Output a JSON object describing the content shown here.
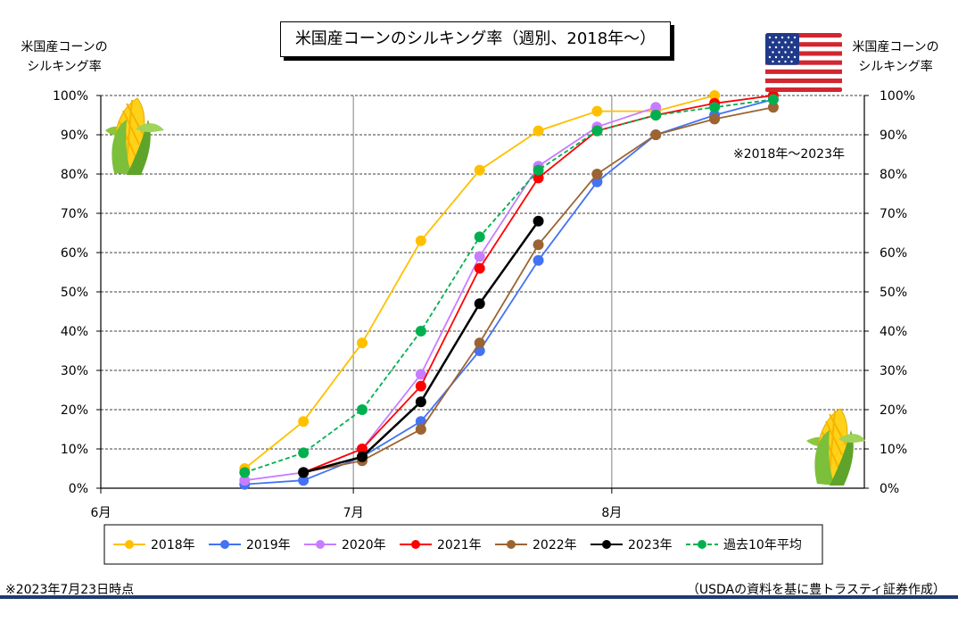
{
  "title": "米国産コーンのシルキング率（週別、2018年～）",
  "left_axis_caption": [
    "米国産コーンの",
    "シルキング率"
  ],
  "right_axis_caption": [
    "米国産コーンの",
    "シルキング率"
  ],
  "range_note": "※2018年～2023年",
  "footnote_left": "※2023年7月23日時点",
  "footnote_right": "（USDAの資料を基に豊トラスティ証券作成）",
  "icons": [
    "corn-icon",
    "us-flag-icon"
  ],
  "chart_data": {
    "type": "line",
    "x_unit": "week",
    "x_ticks": [
      {
        "label": "6月",
        "week": 0
      },
      {
        "label": "7月",
        "week": 4.3
      },
      {
        "label": "8月",
        "week": 8.7
      }
    ],
    "xlim": [
      0,
      13
    ],
    "ylim": [
      0,
      100
    ],
    "y_ticks": [
      "0%",
      "10%",
      "20%",
      "30%",
      "40%",
      "50%",
      "60%",
      "70%",
      "80%",
      "90%",
      "100%"
    ],
    "grid": "horizontal dashed, vertical solid at month boundaries",
    "legend_position": "bottom",
    "series": [
      {
        "name": "2018年",
        "color": "#ffc000",
        "dashed": false,
        "points": [
          [
            2.45,
            5
          ],
          [
            3.45,
            17
          ],
          [
            4.45,
            37
          ],
          [
            5.45,
            63
          ],
          [
            6.45,
            81
          ],
          [
            7.45,
            91
          ],
          [
            8.45,
            96
          ],
          [
            9.45,
            96
          ],
          [
            10.45,
            100
          ]
        ]
      },
      {
        "name": "2019年",
        "color": "#4472f4",
        "dashed": false,
        "points": [
          [
            2.45,
            1
          ],
          [
            3.45,
            2
          ],
          [
            4.45,
            8
          ],
          [
            5.45,
            17
          ],
          [
            6.45,
            35
          ],
          [
            7.45,
            58
          ],
          [
            8.45,
            78
          ],
          [
            9.45,
            90
          ],
          [
            10.45,
            95
          ],
          [
            11.45,
            99
          ]
        ]
      },
      {
        "name": "2020年",
        "color": "#c77dff",
        "dashed": false,
        "points": [
          [
            2.45,
            2
          ],
          [
            3.45,
            4
          ],
          [
            4.45,
            10
          ],
          [
            5.45,
            29
          ],
          [
            6.45,
            59
          ],
          [
            7.45,
            82
          ],
          [
            8.45,
            92
          ],
          [
            9.45,
            97
          ]
        ]
      },
      {
        "name": "2021年",
        "color": "#ff0000",
        "dashed": false,
        "points": [
          [
            3.45,
            4
          ],
          [
            4.45,
            10
          ],
          [
            5.45,
            26
          ],
          [
            6.45,
            56
          ],
          [
            7.45,
            79
          ],
          [
            8.45,
            91
          ],
          [
            9.45,
            95
          ],
          [
            10.45,
            98
          ],
          [
            11.45,
            100
          ]
        ]
      },
      {
        "name": "2022年",
        "color": "#9b6432",
        "dashed": false,
        "points": [
          [
            3.45,
            4
          ],
          [
            4.45,
            7
          ],
          [
            5.45,
            15
          ],
          [
            6.45,
            37
          ],
          [
            7.45,
            62
          ],
          [
            8.45,
            80
          ],
          [
            9.45,
            90
          ],
          [
            10.45,
            94
          ],
          [
            11.45,
            97
          ]
        ]
      },
      {
        "name": "2023年",
        "color": "#000000",
        "dashed": false,
        "points": [
          [
            3.45,
            4
          ],
          [
            4.45,
            8
          ],
          [
            5.45,
            22
          ],
          [
            6.45,
            47
          ],
          [
            7.45,
            68
          ]
        ]
      },
      {
        "name": "過去10年平均",
        "color": "#00b050",
        "dashed": true,
        "points": [
          [
            2.45,
            4
          ],
          [
            3.45,
            9
          ],
          [
            4.45,
            20
          ],
          [
            5.45,
            40
          ],
          [
            6.45,
            64
          ],
          [
            7.45,
            81
          ],
          [
            8.45,
            91
          ],
          [
            9.45,
            95
          ],
          [
            10.45,
            97
          ],
          [
            11.45,
            99
          ]
        ]
      }
    ]
  }
}
